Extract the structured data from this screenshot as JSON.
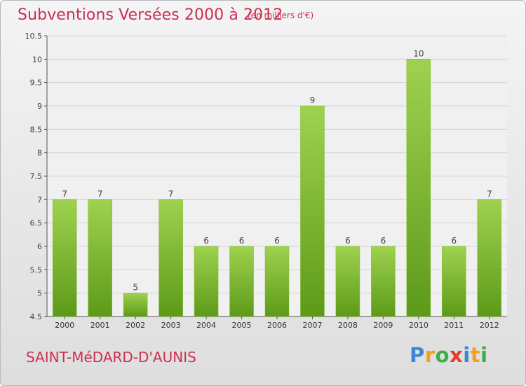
{
  "header": {
    "title": "Subventions Versées 2000 à 2012",
    "subtitle": "(en milliers d'€)"
  },
  "footer": {
    "commune": "SAINT-MéDARD-D'AUNIS",
    "brand_letters": [
      {
        "char": "P",
        "color": "#3d86d6"
      },
      {
        "char": "r",
        "color": "#f0a21e"
      },
      {
        "char": "o",
        "color": "#3fae49"
      },
      {
        "char": "x",
        "color": "#e63a2e"
      },
      {
        "char": "i",
        "color": "#3d86d6"
      },
      {
        "char": "t",
        "color": "#f0a21e"
      },
      {
        "char": "i",
        "color": "#3fae49"
      }
    ]
  },
  "colors": {
    "title": "#cc2f52",
    "bar_top": "#9ed24f",
    "bar_bottom": "#5d9a19",
    "grid": "#d4d4d4"
  },
  "chart_data": {
    "type": "bar",
    "categories": [
      "2000",
      "2001",
      "2002",
      "2003",
      "2004",
      "2005",
      "2006",
      "2007",
      "2008",
      "2009",
      "2010",
      "2011",
      "2012"
    ],
    "values": [
      7,
      7,
      5,
      7,
      6,
      6,
      6,
      9,
      6,
      6,
      10,
      6,
      7
    ],
    "data_labels": [
      "7",
      "7",
      "5",
      "7",
      "6",
      "6",
      "6",
      "9",
      "6",
      "6",
      "10",
      "6",
      "7"
    ],
    "ylim": [
      4.5,
      10.5
    ],
    "yticks": [
      "4.5",
      "5",
      "5.5",
      "6",
      "6.5",
      "7",
      "7.5",
      "8",
      "8.5",
      "9",
      "9.5",
      "10",
      "10.5"
    ],
    "grid": true,
    "title": "Subventions Versées 2000 à 2012",
    "xlabel": "",
    "ylabel": ""
  }
}
